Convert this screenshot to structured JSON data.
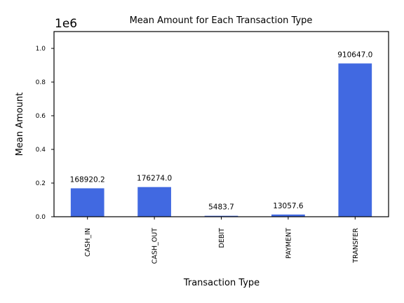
{
  "chart_data": {
    "type": "bar",
    "title": "Mean Amount for Each Transaction Type",
    "xlabel": "Transaction Type",
    "ylabel": "Mean Amount",
    "y_offset_label": "1e6",
    "categories": [
      "CASH_IN",
      "CASH_OUT",
      "DEBIT",
      "PAYMENT",
      "TRANSFER"
    ],
    "values": [
      168920.2,
      176274.0,
      5483.7,
      13057.6,
      910647.0
    ],
    "data_labels": [
      "168920.2",
      "176274.0",
      "5483.7",
      "13057.6",
      "910647.0"
    ],
    "ylim": [
      0,
      1100000
    ],
    "yticks": [
      0,
      200000,
      400000,
      600000,
      800000,
      1000000
    ],
    "ytick_labels": [
      "0.0",
      "0.2",
      "0.4",
      "0.6",
      "0.8",
      "1.0"
    ],
    "bar_color": "#4169e1",
    "grid": false,
    "legend": "none"
  }
}
